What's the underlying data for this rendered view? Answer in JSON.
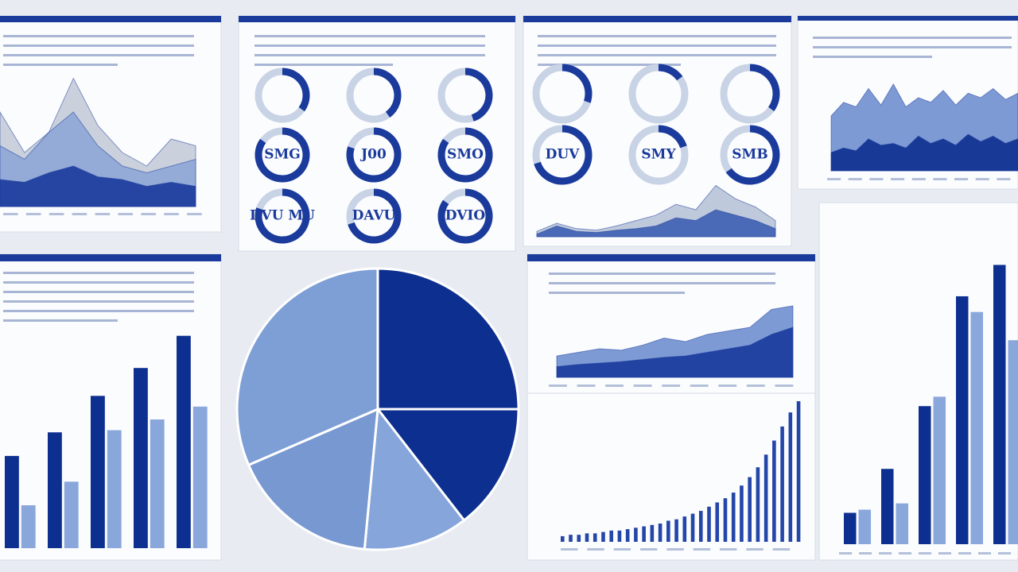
{
  "chart_data": [
    {
      "type": "area",
      "ylim": [
        0,
        100
      ],
      "series": [
        {
          "color": "#c5ccd8",
          "values": [
            70,
            40,
            55,
            95,
            60,
            40,
            30,
            50,
            45
          ]
        },
        {
          "color": "#8ea6d6",
          "values": [
            45,
            35,
            55,
            70,
            45,
            30,
            25,
            30,
            35
          ]
        },
        {
          "color": "#1a3a9c",
          "values": [
            20,
            18,
            25,
            30,
            22,
            20,
            15,
            18,
            15
          ]
        }
      ]
    },
    {
      "type": "donut",
      "color": "#1a3a9c",
      "categories": [
        null,
        null,
        null,
        "SMG",
        "J00",
        "SMO",
        "DVU MU",
        "DAVU",
        "DVIO"
      ],
      "values": [
        35,
        40,
        45,
        85,
        80,
        85,
        80,
        70,
        85
      ]
    },
    {
      "type": "donut",
      "color": "#1a3a9c",
      "categories": [
        null,
        null,
        null,
        "DUV",
        "SMY",
        "SMB"
      ],
      "values": [
        30,
        15,
        35,
        70,
        20,
        65
      ]
    },
    {
      "type": "area",
      "ylim": [
        0,
        100
      ],
      "series": [
        {
          "color": "#b8c3d8",
          "values": [
            10,
            25,
            15,
            12,
            20,
            30,
            40,
            60,
            50,
            95,
            70,
            55,
            30
          ]
        },
        {
          "color": "#3d5fb3",
          "values": [
            5,
            20,
            10,
            8,
            12,
            15,
            20,
            35,
            30,
            50,
            40,
            30,
            15
          ]
        }
      ]
    },
    {
      "type": "area",
      "ylim": [
        0,
        100
      ],
      "series": [
        {
          "color": "#6f8fd0",
          "values": [
            60,
            75,
            70,
            90,
            72,
            95,
            70,
            80,
            75,
            88,
            72,
            85,
            80,
            90,
            78,
            85
          ]
        },
        {
          "color": "#0d2f8f",
          "values": [
            20,
            25,
            22,
            35,
            28,
            30,
            25,
            38,
            30,
            35,
            28,
            40,
            32,
            38,
            30,
            35
          ]
        }
      ]
    },
    {
      "type": "bar",
      "ylim": [
        0,
        100
      ],
      "series": [
        {
          "color": "#0d2f8f",
          "values": [
            43,
            54,
            71,
            84,
            99
          ]
        },
        {
          "color": "#8aa7dc",
          "values": [
            20,
            31,
            55,
            60,
            66
          ]
        }
      ]
    },
    {
      "type": "pie",
      "values": [
        25,
        14.5,
        12,
        17,
        31.5
      ],
      "colors": [
        "#0d2f8f",
        "#0d2f8f",
        "#86a5da",
        "#7898d2",
        "#7d9fd6"
      ]
    },
    {
      "type": "area",
      "ylim": [
        0,
        100
      ],
      "series": [
        {
          "color": "#6f8fd0",
          "values": [
            30,
            35,
            40,
            38,
            45,
            55,
            50,
            60,
            65,
            70,
            95,
            100
          ]
        },
        {
          "color": "#1a3a9c",
          "values": [
            15,
            18,
            20,
            22,
            25,
            28,
            30,
            35,
            40,
            45,
            60,
            70
          ]
        }
      ]
    },
    {
      "type": "bar",
      "ylim": [
        0,
        100
      ],
      "series": [
        {
          "color": "#2446a8",
          "values": [
            4,
            5,
            5,
            6,
            6,
            7,
            8,
            8,
            9,
            10,
            11,
            12,
            13,
            15,
            16,
            18,
            20,
            22,
            25,
            28,
            31,
            35,
            40,
            46,
            53,
            62,
            72,
            82,
            92,
            100
          ]
        }
      ]
    },
    {
      "type": "bar",
      "ylim": [
        0,
        100
      ],
      "series": [
        {
          "color": "#0d2f8f",
          "values": [
            10,
            24,
            44,
            79,
            89
          ]
        },
        {
          "color": "#8aa7dc",
          "values": [
            11,
            13,
            47,
            74,
            65
          ]
        }
      ]
    }
  ]
}
